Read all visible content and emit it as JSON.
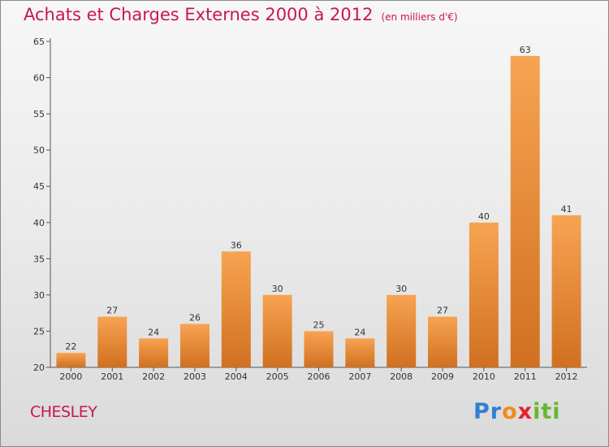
{
  "title": "Achats et Charges Externes 2000 à 2012",
  "subtitle": "(en milliers d'€)",
  "commune": "CHESLEY",
  "logo": {
    "p": "Pr",
    "o": "o",
    "x": "x",
    "iti": "iti"
  },
  "colors": {
    "title": "#c8174e",
    "bar_light": "#f7a452",
    "bar_dark": "#d07020",
    "axis": "#555555"
  },
  "chart_data": {
    "type": "bar",
    "title": "Achats et Charges Externes 2000 à 2012",
    "subtitle": "(en milliers d'€)",
    "categories": [
      "2000",
      "2001",
      "2002",
      "2003",
      "2004",
      "2005",
      "2006",
      "2007",
      "2008",
      "2009",
      "2010",
      "2011",
      "2012"
    ],
    "values": [
      22,
      27,
      24,
      26,
      36,
      30,
      25,
      24,
      30,
      27,
      40,
      63,
      41
    ],
    "ylim": [
      20,
      65
    ],
    "yticks": [
      20,
      25,
      30,
      35,
      40,
      45,
      50,
      55,
      60,
      65
    ],
    "grid": false,
    "data_labels": true
  }
}
